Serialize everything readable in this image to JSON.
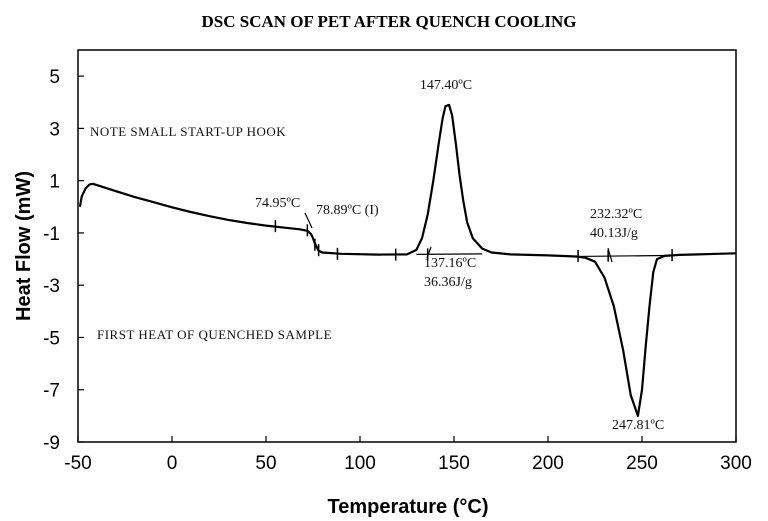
{
  "chart_data": {
    "type": "line",
    "title": "DSC SCAN OF PET AFTER QUENCH COOLING",
    "xlabel": "Temperature (°C)",
    "ylabel": "Heat Flow (mW)",
    "xlim": [
      -50,
      300
    ],
    "ylim": [
      -9,
      6
    ],
    "x_ticks": [
      "-50",
      "0",
      "50",
      "100",
      "150",
      "200",
      "250",
      "300"
    ],
    "y_ticks": [
      "5",
      "3",
      "1",
      "-1",
      "-3",
      "-5",
      "-7",
      "-9"
    ],
    "series": [
      {
        "name": "First heat of quenched sample",
        "points": [
          [
            -49,
            0.0
          ],
          [
            -48,
            0.4
          ],
          [
            -46,
            0.7
          ],
          [
            -44,
            0.85
          ],
          [
            -42,
            0.88
          ],
          [
            -40,
            0.83
          ],
          [
            -30,
            0.6
          ],
          [
            -20,
            0.38
          ],
          [
            -10,
            0.18
          ],
          [
            0,
            -0.02
          ],
          [
            10,
            -0.2
          ],
          [
            20,
            -0.36
          ],
          [
            30,
            -0.5
          ],
          [
            40,
            -0.62
          ],
          [
            50,
            -0.72
          ],
          [
            60,
            -0.8
          ],
          [
            68,
            -0.86
          ],
          [
            72,
            -0.92
          ],
          [
            74,
            -1.05
          ],
          [
            75,
            -1.2
          ],
          [
            76,
            -1.4
          ],
          [
            77,
            -1.55
          ],
          [
            78,
            -1.68
          ],
          [
            80,
            -1.75
          ],
          [
            90,
            -1.8
          ],
          [
            110,
            -1.83
          ],
          [
            125,
            -1.82
          ],
          [
            130,
            -1.65
          ],
          [
            133,
            -1.2
          ],
          [
            136,
            -0.3
          ],
          [
            139,
            1.0
          ],
          [
            142,
            2.5
          ],
          [
            144,
            3.4
          ],
          [
            145.5,
            3.85
          ],
          [
            147.4,
            3.9
          ],
          [
            149,
            3.5
          ],
          [
            151,
            2.4
          ],
          [
            153,
            1.2
          ],
          [
            155,
            0.2
          ],
          [
            157,
            -0.6
          ],
          [
            160,
            -1.2
          ],
          [
            165,
            -1.6
          ],
          [
            170,
            -1.75
          ],
          [
            180,
            -1.82
          ],
          [
            200,
            -1.86
          ],
          [
            215,
            -1.9
          ],
          [
            220,
            -1.95
          ],
          [
            225,
            -2.1
          ],
          [
            230,
            -2.7
          ],
          [
            235,
            -3.8
          ],
          [
            240,
            -5.5
          ],
          [
            244,
            -7.2
          ],
          [
            247.8,
            -8.0
          ],
          [
            250,
            -7.0
          ],
          [
            252,
            -5.3
          ],
          [
            254,
            -3.8
          ],
          [
            256,
            -2.5
          ],
          [
            258,
            -2.0
          ],
          [
            262,
            -1.88
          ],
          [
            270,
            -1.84
          ],
          [
            280,
            -1.82
          ],
          [
            290,
            -1.8
          ],
          [
            300,
            -1.78
          ]
        ]
      }
    ],
    "baselines": [
      [
        [
          130,
          -1.82
        ],
        [
          165,
          -1.8
        ]
      ],
      [
        [
          216,
          -1.9
        ],
        [
          268,
          -1.86
        ]
      ]
    ],
    "tick_marks": [
      [
        55,
        -0.74
      ],
      [
        72,
        -0.9
      ],
      [
        76,
        -1.45
      ],
      [
        78,
        -1.66
      ],
      [
        88,
        -1.8
      ],
      [
        119,
        -1.83
      ],
      [
        136,
        -1.82
      ],
      [
        216,
        -1.88
      ],
      [
        232,
        -1.87
      ],
      [
        266,
        -1.85
      ]
    ],
    "annotations": {
      "peak_cryst": "147.40ºC",
      "tg_onset": "74.95ºC",
      "tg_mid": "78.89ºC  (I)",
      "cryst_onset": "137.16ºC",
      "cryst_enthalpy": "36.36J/g",
      "melt_onset": "232.32ºC",
      "melt_enthalpy": "40.13J/g",
      "peak_melt": "247.81ºC",
      "note_hook": "NOTE SMALL START-UP HOOK",
      "note_sample": "FIRST HEAT OF QUENCHED SAMPLE"
    }
  }
}
